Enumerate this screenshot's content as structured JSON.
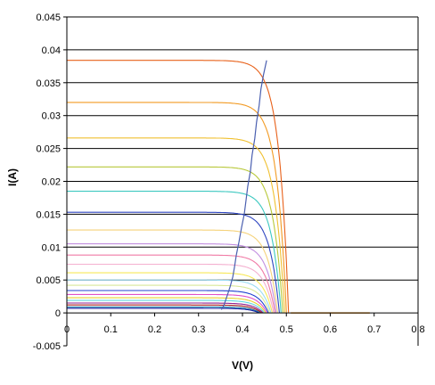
{
  "chart_data": {
    "type": "line",
    "title": "",
    "xlabel": "V(V)",
    "ylabel": "I(A)",
    "xlim": [
      0,
      0.8
    ],
    "ylim": [
      -0.005,
      0.045
    ],
    "x_ticks": [
      0,
      0.1,
      0.2,
      0.3,
      0.4,
      0.5,
      0.6,
      0.7,
      0.8
    ],
    "x_tick_labels": [
      "0",
      "0.1",
      "0.2",
      "0.3",
      "0.4",
      "0.5",
      "0.6",
      "0.7",
      "0.8"
    ],
    "y_ticks": [
      -0.005,
      0,
      0.005,
      0.01,
      0.015,
      0.02,
      0.025,
      0.03,
      0.035,
      0.04,
      0.045
    ],
    "y_tick_labels": [
      "-0.005",
      "0",
      "0.005",
      "0.01",
      "0.015",
      "0.02",
      "0.025",
      "0.03",
      "0.035",
      "0.04",
      "0.045"
    ],
    "grid": {
      "horizontal": true,
      "vertical": false
    },
    "legend": "none",
    "series": [
      {
        "isc": 0.0384,
        "voc": 0.505,
        "color": "#e8611a"
      },
      {
        "isc": 0.032,
        "voc": 0.5,
        "color": "#f29a22"
      },
      {
        "isc": 0.0266,
        "voc": 0.496,
        "color": "#f0c030"
      },
      {
        "isc": 0.0222,
        "voc": 0.492,
        "color": "#b8c83a"
      },
      {
        "isc": 0.0185,
        "voc": 0.488,
        "color": "#3cc8c0"
      },
      {
        "isc": 0.0153,
        "voc": 0.484,
        "color": "#2e45c0"
      },
      {
        "isc": 0.0126,
        "voc": 0.48,
        "color": "#f5d27a"
      },
      {
        "isc": 0.0105,
        "voc": 0.477,
        "color": "#c28ee0"
      },
      {
        "isc": 0.0088,
        "voc": 0.474,
        "color": "#f07aa5"
      },
      {
        "isc": 0.0074,
        "voc": 0.471,
        "color": "#f4b0d0"
      },
      {
        "isc": 0.0061,
        "voc": 0.468,
        "color": "#f8e858"
      },
      {
        "isc": 0.005,
        "voc": 0.465,
        "color": "#9adcf2"
      },
      {
        "isc": 0.0042,
        "voc": 0.462,
        "color": "#d8e898"
      },
      {
        "isc": 0.0034,
        "voc": 0.459,
        "color": "#2040d0"
      },
      {
        "isc": 0.0028,
        "voc": 0.456,
        "color": "#e050c8"
      },
      {
        "isc": 0.0023,
        "voc": 0.453,
        "color": "#e8d030"
      },
      {
        "isc": 0.0019,
        "voc": 0.45,
        "color": "#60d8e0"
      },
      {
        "isc": 0.0015,
        "voc": 0.447,
        "color": "#902090"
      },
      {
        "isc": 0.0012,
        "voc": 0.444,
        "color": "#a01818"
      },
      {
        "isc": 0.0009,
        "voc": 0.441,
        "color": "#1878a0"
      },
      {
        "isc": 0.0007,
        "voc": 0.438,
        "color": "#1018a0"
      }
    ],
    "mpp_locus": {
      "color": "#4a5fb0",
      "points": [
        [
          0.352,
          0.0005
        ],
        [
          0.358,
          0.0012
        ],
        [
          0.362,
          0.002
        ],
        [
          0.366,
          0.0028
        ],
        [
          0.372,
          0.004
        ],
        [
          0.378,
          0.0055
        ],
        [
          0.382,
          0.007
        ],
        [
          0.386,
          0.0088
        ],
        [
          0.392,
          0.0108
        ],
        [
          0.398,
          0.013
        ],
        [
          0.404,
          0.015
        ],
        [
          0.408,
          0.017
        ],
        [
          0.412,
          0.0192
        ],
        [
          0.418,
          0.0215
        ],
        [
          0.422,
          0.024
        ],
        [
          0.428,
          0.0265
        ],
        [
          0.432,
          0.029
        ],
        [
          0.438,
          0.0315
        ],
        [
          0.442,
          0.034
        ],
        [
          0.448,
          0.0362
        ],
        [
          0.455,
          0.0384
        ]
      ]
    },
    "tail": {
      "color": "#f29a22",
      "x": [
        0.51,
        0.69
      ],
      "y": 0
    }
  }
}
